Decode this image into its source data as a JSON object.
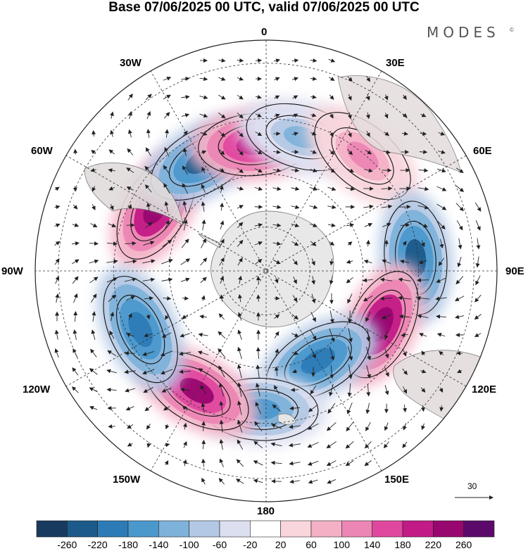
{
  "title": "Base 07/06/2025 00 UTC, valid 07/06/2025 00 UTC",
  "brand": "MODES",
  "brand_mark": "©",
  "longitude_labels": {
    "lon_0": "0",
    "lon_30e": "30E",
    "lon_60e": "60E",
    "lon_90e": "90E",
    "lon_120e": "120E",
    "lon_150e": "150E",
    "lon_180": "180",
    "lon_150w": "150W",
    "lon_120w": "120W",
    "lon_90w": "90W",
    "lon_60w": "60W",
    "lon_30w": "30W"
  },
  "reference_vector": {
    "value": "30",
    "icon": "arrow-right-icon"
  },
  "colorbar": {
    "colors": [
      "#173a5e",
      "#1b5a8a",
      "#2c7bb6",
      "#4b98cc",
      "#7fb2da",
      "#b3c8e4",
      "#dcdff0",
      "#ffffff",
      "#f8d6dc",
      "#f4b1c6",
      "#ec86b4",
      "#e0489f",
      "#c21a86",
      "#98066f",
      "#5b0a6b"
    ],
    "labels": [
      "-260",
      "-220",
      "-180",
      "-140",
      "-100",
      "-60",
      "-20",
      "20",
      "60",
      "100",
      "140",
      "180",
      "220",
      "260"
    ]
  },
  "anomaly_centers": [
    {
      "lon": -60,
      "lat_pos": 0.55,
      "sign": "positive",
      "strength": 240
    },
    {
      "lon": -30,
      "lat_pos": 0.55,
      "sign": "negative",
      "strength": 220
    },
    {
      "lon": -5,
      "lat_pos": 0.55,
      "sign": "positive",
      "strength": 200
    },
    {
      "lon": 15,
      "lat_pos": 0.6,
      "sign": "negative",
      "strength": 100
    },
    {
      "lon": 40,
      "lat_pos": 0.65,
      "sign": "positive",
      "strength": 100
    },
    {
      "lon": 85,
      "lat_pos": 0.65,
      "sign": "negative",
      "strength": 220
    },
    {
      "lon": 115,
      "lat_pos": 0.55,
      "sign": "positive",
      "strength": 240
    },
    {
      "lon": 150,
      "lat_pos": 0.45,
      "sign": "negative",
      "strength": 200
    },
    {
      "lon": -178,
      "lat_pos": 0.6,
      "sign": "negative",
      "strength": 160
    },
    {
      "lon": -150,
      "lat_pos": 0.6,
      "sign": "positive",
      "strength": 220
    },
    {
      "lon": -115,
      "lat_pos": 0.6,
      "sign": "negative",
      "strength": 180
    }
  ]
}
